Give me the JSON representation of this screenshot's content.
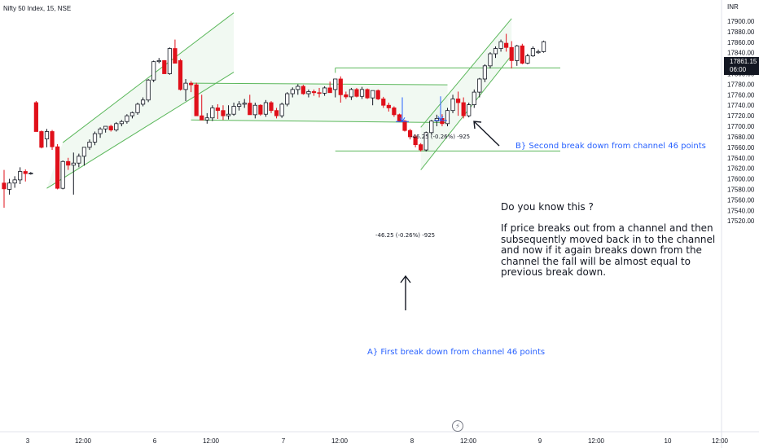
{
  "header": {
    "symbol_title": "Nifty 50 Index, 15, NSE",
    "currency": "INR"
  },
  "price_badge": {
    "price": "17861.15",
    "countdown": "06:00"
  },
  "annotations": {
    "second_break": "B} Second break down from channel 46 points",
    "first_break": "A} First break down from channel 46 points",
    "note_question": "Do you know this ?",
    "note_lines": [
      "If price breaks out from a channel and then",
      "subsequently  moved back in to the channel",
      "and now if it again breaks down from the",
      "channel the fall will be almost equal to",
      "previous break down."
    ],
    "measure_upper": "-46.25 (-0.26%) -925",
    "measure_lower": "-46.25 (-0.26%) -925"
  },
  "icons": {
    "replay": "lightning-icon"
  },
  "colors": {
    "up": "#ffffff",
    "down": "#e0101a",
    "outline": "#131722",
    "channel": "#5cb85c",
    "text_blue": "#2962ff"
  },
  "chart_data": {
    "type": "candlestick",
    "title": "Nifty 50 Index, 15, NSE",
    "ylabel": "INR",
    "ylim": [
      17510,
      17915
    ],
    "y_ticks": [
      17900,
      17880,
      17860,
      17840,
      17820,
      17800,
      17780,
      17760,
      17740,
      17720,
      17700,
      17680,
      17660,
      17640,
      17620,
      17600,
      17580,
      17560,
      17540,
      17520
    ],
    "x_ticks": [
      "3",
      "12:00",
      "6",
      "12:00",
      "7",
      "12:00",
      "8",
      "12:00",
      "9",
      "12:00",
      "10",
      "12:00"
    ],
    "last_price": 17861.15,
    "candles": [
      [
        17592,
        17617,
        17545,
        17581
      ],
      [
        17580,
        17600,
        17570,
        17592
      ],
      [
        17592,
        17605,
        17583,
        17598
      ],
      [
        17598,
        17622,
        17590,
        17614
      ],
      [
        17614,
        17618,
        17595,
        17610
      ],
      [
        17610,
        17613,
        17608,
        17611
      ],
      [
        17745,
        17748,
        17690,
        17690
      ],
      [
        17690,
        17692,
        17658,
        17660
      ],
      [
        17676,
        17695,
        17660,
        17690
      ],
      [
        17690,
        17693,
        17655,
        17661
      ],
      [
        17661,
        17666,
        17580,
        17582
      ],
      [
        17582,
        17635,
        17580,
        17633
      ],
      [
        17633,
        17640,
        17617,
        17626
      ],
      [
        17626,
        17650,
        17570,
        17630
      ],
      [
        17630,
        17648,
        17622,
        17643
      ],
      [
        17643,
        17660,
        17625,
        17660
      ],
      [
        17660,
        17675,
        17655,
        17670
      ],
      [
        17670,
        17690,
        17664,
        17686
      ],
      [
        17686,
        17698,
        17678,
        17695
      ],
      [
        17695,
        17700,
        17688,
        17700
      ],
      [
        17700,
        17703,
        17690,
        17693
      ],
      [
        17693,
        17708,
        17690,
        17705
      ],
      [
        17705,
        17712,
        17700,
        17709
      ],
      [
        17709,
        17723,
        17705,
        17720
      ],
      [
        17720,
        17728,
        17715,
        17726
      ],
      [
        17726,
        17745,
        17722,
        17742
      ],
      [
        17742,
        17755,
        17738,
        17750
      ],
      [
        17750,
        17790,
        17746,
        17788
      ],
      [
        17788,
        17825,
        17784,
        17823
      ],
      [
        17823,
        17830,
        17820,
        17825
      ],
      [
        17825,
        17826,
        17800,
        17800
      ],
      [
        17800,
        17850,
        17798,
        17848
      ],
      [
        17848,
        17865,
        17820,
        17820
      ],
      [
        17825,
        17828,
        17768,
        17770
      ],
      [
        17770,
        17790,
        17748,
        17782
      ],
      [
        17782,
        17786,
        17765,
        17779
      ],
      [
        17779,
        17783,
        17720,
        17720
      ],
      [
        17720,
        17760,
        17713,
        17712
      ],
      [
        17712,
        17725,
        17705,
        17716
      ],
      [
        17716,
        17740,
        17710,
        17735
      ],
      [
        17735,
        17742,
        17714,
        17730
      ],
      [
        17730,
        17740,
        17712,
        17720
      ],
      [
        17720,
        17740,
        17713,
        17723
      ],
      [
        17723,
        17745,
        17720,
        17738
      ],
      [
        17738,
        17748,
        17730,
        17742
      ],
      [
        17742,
        17752,
        17735,
        17744
      ],
      [
        17744,
        17760,
        17722,
        17722
      ],
      [
        17722,
        17745,
        17715,
        17740
      ],
      [
        17740,
        17742,
        17720,
        17723
      ],
      [
        17723,
        17750,
        17718,
        17745
      ],
      [
        17745,
        17748,
        17725,
        17730
      ],
      [
        17730,
        17735,
        17715,
        17720
      ],
      [
        17720,
        17745,
        17716,
        17742
      ],
      [
        17742,
        17765,
        17738,
        17762
      ],
      [
        17762,
        17774,
        17755,
        17770
      ],
      [
        17770,
        17780,
        17760,
        17776
      ],
      [
        17776,
        17779,
        17760,
        17762
      ],
      [
        17762,
        17770,
        17755,
        17766
      ],
      [
        17766,
        17770,
        17758,
        17764
      ],
      [
        17764,
        17773,
        17755,
        17763
      ],
      [
        17763,
        17776,
        17758,
        17773
      ],
      [
        17773,
        17785,
        17764,
        17764
      ],
      [
        17770,
        17790,
        17755,
        17790
      ],
      [
        17790,
        17795,
        17745,
        17760
      ],
      [
        17760,
        17766,
        17752,
        17756
      ],
      [
        17756,
        17773,
        17750,
        17770
      ],
      [
        17770,
        17773,
        17755,
        17757
      ],
      [
        17757,
        17775,
        17752,
        17770
      ],
      [
        17770,
        17772,
        17752,
        17754
      ],
      [
        17754,
        17768,
        17740,
        17768
      ],
      [
        17768,
        17770,
        17750,
        17752
      ],
      [
        17752,
        17756,
        17735,
        17740
      ],
      [
        17740,
        17745,
        17728,
        17735
      ],
      [
        17735,
        17738,
        17718,
        17722
      ],
      [
        17722,
        17724,
        17708,
        17710
      ],
      [
        17710,
        17712,
        17690,
        17692
      ],
      [
        17692,
        17695,
        17675,
        17680
      ],
      [
        17680,
        17684,
        17660,
        17665
      ],
      [
        17665,
        17668,
        17652,
        17655
      ],
      [
        17655,
        17690,
        17652,
        17688
      ],
      [
        17688,
        17712,
        17684,
        17710
      ],
      [
        17710,
        17722,
        17700,
        17715
      ],
      [
        17715,
        17723,
        17700,
        17705
      ],
      [
        17705,
        17735,
        17700,
        17730
      ],
      [
        17730,
        17760,
        17725,
        17752
      ],
      [
        17752,
        17766,
        17720,
        17745
      ],
      [
        17745,
        17755,
        17715,
        17720
      ],
      [
        17720,
        17745,
        17717,
        17741
      ],
      [
        17741,
        17770,
        17735,
        17765
      ],
      [
        17765,
        17792,
        17755,
        17790
      ],
      [
        17790,
        17818,
        17784,
        17815
      ],
      [
        17815,
        17841,
        17810,
        17838
      ],
      [
        17838,
        17852,
        17830,
        17848
      ],
      [
        17848,
        17865,
        17842,
        17861
      ],
      [
        17858,
        17876,
        17842,
        17850
      ],
      [
        17850,
        17862,
        17810,
        17825
      ],
      [
        17825,
        17855,
        17815,
        17853
      ],
      [
        17853,
        17857,
        17818,
        17820
      ],
      [
        17820,
        17838,
        17818,
        17834
      ],
      [
        17834,
        17852,
        17832,
        17848
      ],
      [
        17840,
        17846,
        17838,
        17842
      ],
      [
        17842,
        17863,
        17840,
        17861
      ]
    ],
    "channels": [
      {
        "name": "rising channel 1",
        "lines": [
          [
            [
              8,
              17582
            ],
            [
              43,
              17803
            ]
          ],
          [
            [
              11,
              17669
            ],
            [
              43,
              17916
            ]
          ]
        ]
      },
      {
        "name": "sideways channel",
        "lines": [
          [
            [
              35,
              17782
            ],
            [
              83,
              17779
            ]
          ],
          [
            [
              35,
              17712
            ],
            [
              83,
              17707
            ]
          ]
        ]
      },
      {
        "name": "rising channel 2",
        "lines": [
          [
            [
              78,
              17617
            ],
            [
              95,
              17835
            ]
          ],
          [
            [
              78,
              17698
            ],
            [
              95,
              17905
            ]
          ]
        ]
      }
    ],
    "levels": [
      {
        "name": "break-down level B",
        "value": 17811,
        "from": 62,
        "to": 124
      },
      {
        "name": "break-down level A",
        "value": 17653,
        "from": 62,
        "to": 124
      }
    ]
  }
}
